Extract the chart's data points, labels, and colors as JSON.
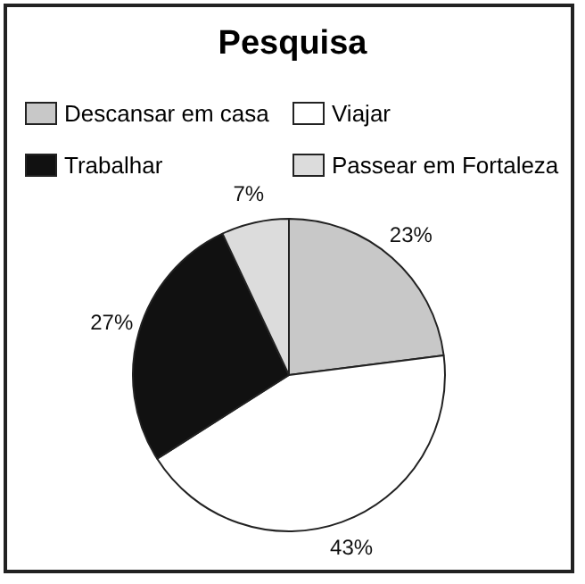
{
  "chart_data": {
    "type": "pie",
    "title": "Pesquisa",
    "categories": [
      "Descansar em casa",
      "Viajar",
      "Trabalhar",
      "Passear em Fortaleza"
    ],
    "values": [
      23,
      43,
      27,
      7
    ],
    "colors": [
      "#c8c8c8",
      "#ffffff",
      "#111111",
      "#dcdcdc"
    ],
    "value_labels": [
      "23%",
      "43%",
      "27%",
      "7%"
    ],
    "legend": "top"
  }
}
